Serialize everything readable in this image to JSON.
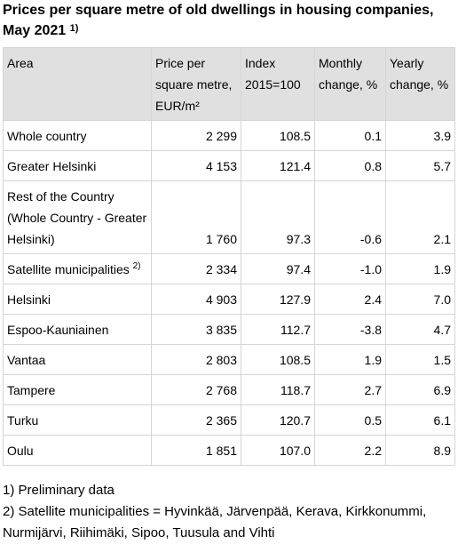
{
  "title": {
    "text": "Prices per square metre of old dwellings in housing companies, May 2021",
    "footnote_mark": "1)"
  },
  "table": {
    "headers": [
      "Area",
      "Price per square metre, EUR/m²",
      "Index 2015=100",
      "Monthly change, %",
      "Yearly change, %"
    ],
    "rows": [
      {
        "area": "Whole country",
        "sup": "",
        "price": "2 299",
        "index": "108.5",
        "monthly": "0.1",
        "yearly": "3.9"
      },
      {
        "area": "Greater Helsinki",
        "sup": "",
        "price": "4 153",
        "index": "121.4",
        "monthly": "0.8",
        "yearly": "5.7"
      },
      {
        "area": "Rest of the Country (Whole Country - Greater Helsinki)",
        "sup": "",
        "price": "1 760",
        "index": "97.3",
        "monthly": "-0.6",
        "yearly": "2.1"
      },
      {
        "area": "Satellite municipalities",
        "sup": "2)",
        "price": "2 334",
        "index": "97.4",
        "monthly": "-1.0",
        "yearly": "1.9"
      },
      {
        "area": "Helsinki",
        "sup": "",
        "price": "4 903",
        "index": "127.9",
        "monthly": "2.4",
        "yearly": "7.0"
      },
      {
        "area": "Espoo-Kauniainen",
        "sup": "",
        "price": "3 835",
        "index": "112.7",
        "monthly": "-3.8",
        "yearly": "4.7"
      },
      {
        "area": "Vantaa",
        "sup": "",
        "price": "2 803",
        "index": "108.5",
        "monthly": "1.9",
        "yearly": "1.5"
      },
      {
        "area": "Tampere",
        "sup": "",
        "price": "2 768",
        "index": "118.7",
        "monthly": "2.7",
        "yearly": "6.9"
      },
      {
        "area": "Turku",
        "sup": "",
        "price": "2 365",
        "index": "120.7",
        "monthly": "0.5",
        "yearly": "6.1"
      },
      {
        "area": "Oulu",
        "sup": "",
        "price": "1 851",
        "index": "107.0",
        "monthly": "2.2",
        "yearly": "8.9"
      }
    ]
  },
  "notes": [
    "1) Preliminary data",
    "2) Satellite municipalities = Hyvinkää, Järvenpää, Kerava, Kirkkonummi, Nurmijärvi, Riihimäki, Sipoo, Tuusula and Vihti"
  ]
}
